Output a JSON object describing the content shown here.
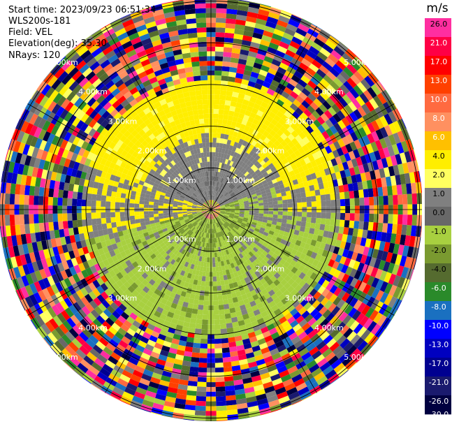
{
  "header": {
    "start_time": "Start time: 2023/09/23 06:51:34",
    "instrument": "WLS200s-181",
    "field": "Field: VEL",
    "elevation": "Elevation(deg): 35.30",
    "nrays": "NRays: 120"
  },
  "chart_data": {
    "type": "heatmap",
    "projection": "polar-ppi",
    "field": "VEL",
    "n_rays": 120,
    "range_rings_km": [
      1.0,
      2.0,
      3.0,
      4.0,
      5.0
    ],
    "ring_labels": [
      "1.00km",
      "2.00km",
      "3.00km",
      "4.00km",
      "5.00km"
    ],
    "colorbar": {
      "unit": "m/s",
      "ticks": [
        "26.0",
        "21.0",
        "17.0",
        "13.0",
        "10.0",
        "8.0",
        "6.0",
        "4.0",
        "2.0",
        "1.0",
        "0.0",
        "-1.0",
        "-2.0",
        "-4.0",
        "-6.0",
        "-8.0",
        "-10.0",
        "-13.0",
        "-17.0",
        "-21.0",
        "-26.0",
        "-30.0"
      ],
      "colors": [
        "#ff2ea0",
        "#ff0045",
        "#ff0000",
        "#ff4000",
        "#ff6a40",
        "#ff9060",
        "#ffc000",
        "#ffee00",
        "#ffff60",
        "#808080",
        "#686868",
        "#a8d040",
        "#7a9a30",
        "#556b2f",
        "#2a8a2a",
        "#1a70c0",
        "#0000ff",
        "#0000c0",
        "#000090",
        "#1a1a6e",
        "#000040"
      ]
    },
    "pattern": {
      "inner_green_km": 1.0,
      "yellow_band_km": [
        1.8,
        2.6
      ],
      "noise_beyond_km": 3.0
    }
  }
}
